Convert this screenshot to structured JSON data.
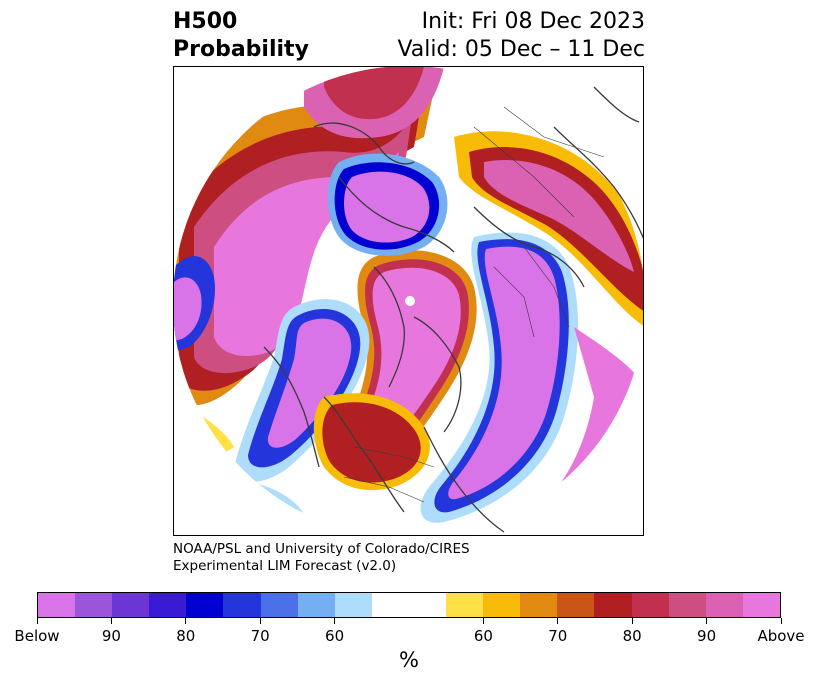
{
  "title": {
    "left_line1": "H500",
    "left_line2": "Probability",
    "right_line1": "Init: Fri 08 Dec 2023",
    "right_line2": "Valid: 05 Dec – 11 Dec"
  },
  "credit": {
    "line1": "NOAA/PSL and University of Colorado/CIRES",
    "line2": "Experimental LIM Forecast (v2.0)"
  },
  "colorbar": {
    "colors": [
      "#d973e8",
      "#9a55db",
      "#6c36d4",
      "#3b1ad6",
      "#0000d0",
      "#2335db",
      "#4b6fe6",
      "#74aff2",
      "#aedcfb",
      "#ffffff",
      "#ffffff",
      "#ffe047",
      "#f7bb08",
      "#e08a12",
      "#c95618",
      "#b01f22",
      "#c23050",
      "#cd4e80",
      "#db62b3",
      "#e877dd"
    ],
    "tick_labels": [
      "Below",
      "90",
      "80",
      "70",
      "60",
      "60",
      "70",
      "80",
      "90",
      "Above"
    ],
    "unit": "%"
  },
  "map": {
    "projection": "north-polar-stereographic",
    "colors": {
      "above_high": "#e877dd",
      "above_mid": "#db62b3",
      "above_low": "#c23050",
      "warm1": "#b01f22",
      "warm2": "#e08a12",
      "warm3": "#f7bb08",
      "warm4": "#ffe047",
      "cool1": "#aedcfb",
      "cool2": "#74aff2",
      "cool3": "#2335db",
      "cool4": "#0000d0",
      "below": "#d973e8",
      "coast": "#3a3a3a"
    }
  }
}
